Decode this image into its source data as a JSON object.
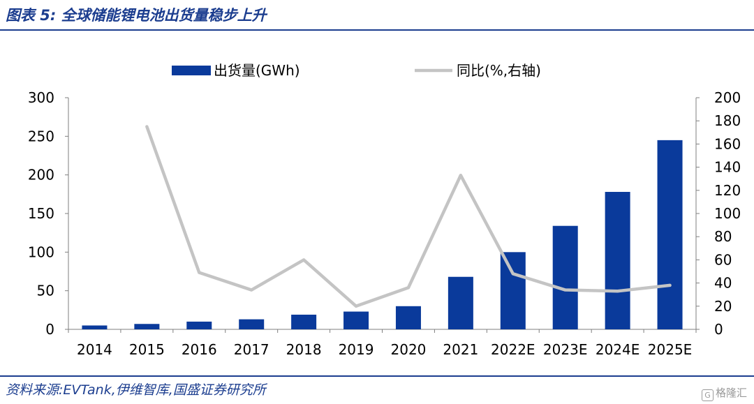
{
  "header": {
    "figure_label": "图表 5:",
    "title": "全球储能锂电池出货量稳步上升"
  },
  "footer": {
    "source": "资料来源:EVTank,伊维智库,国盛证券研究所",
    "watermark": "格隆汇",
    "watermark_icon": "G"
  },
  "chart_data": {
    "type": "bar",
    "categories": [
      "2014",
      "2015",
      "2016",
      "2017",
      "2018",
      "2019",
      "2020",
      "2021",
      "2022E",
      "2023E",
      "2024E",
      "2025E"
    ],
    "series": [
      {
        "name": "出货量(GWh)",
        "type": "bar",
        "axis": "left",
        "color": "#0a3a9b",
        "values": [
          5,
          7,
          10,
          13,
          19,
          23,
          30,
          68,
          100,
          134,
          178,
          245
        ]
      },
      {
        "name": "同比(%,右轴)",
        "type": "line",
        "axis": "right",
        "color": "#c4c4c4",
        "values": [
          null,
          175,
          49,
          34,
          60,
          20,
          36,
          133,
          48,
          34,
          33,
          38
        ]
      }
    ],
    "y_left": {
      "min": 0,
      "max": 300,
      "ticks": [
        0,
        50,
        100,
        150,
        200,
        250,
        300
      ]
    },
    "y_right": {
      "min": 0,
      "max": 200,
      "ticks": [
        0,
        20,
        40,
        60,
        80,
        100,
        120,
        140,
        160,
        180,
        200
      ]
    },
    "legend_position": "top",
    "grid": false
  }
}
